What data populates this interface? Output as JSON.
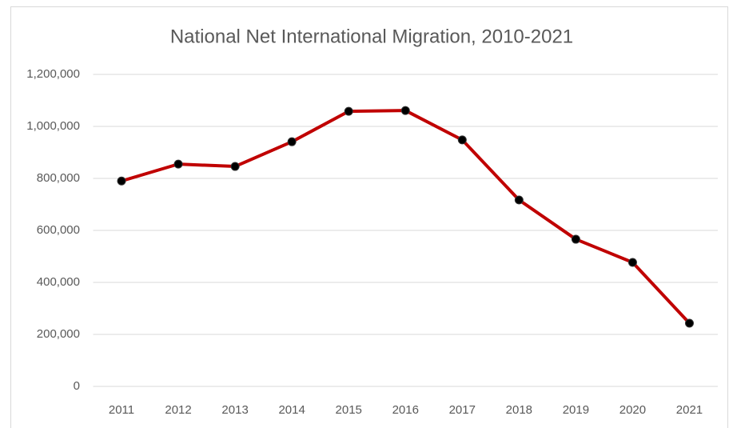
{
  "chart_data": {
    "type": "line",
    "title": "National Net International Migration, 2010-2021",
    "categories": [
      "2011",
      "2012",
      "2013",
      "2014",
      "2015",
      "2016",
      "2017",
      "2018",
      "2019",
      "2020",
      "2021"
    ],
    "series": [
      {
        "name": "Net International Migration",
        "color": "#c00000",
        "values": [
          790000,
          855000,
          846000,
          941000,
          1058000,
          1061000,
          948000,
          717000,
          566000,
          477000,
          243000
        ]
      }
    ],
    "ylim": [
      0,
      1200000
    ],
    "yticks": [
      0,
      {
        "value": 200000,
        "label": "200,000"
      },
      {
        "value": 400000,
        "label": "400,000"
      },
      {
        "value": 600000,
        "label": "600,000"
      },
      {
        "value": 800000,
        "label": "800,000"
      },
      {
        "value": 1000000,
        "label": "1,000,000"
      },
      {
        "value": 1200000,
        "label": "1,200,000"
      }
    ],
    "grid": true
  }
}
